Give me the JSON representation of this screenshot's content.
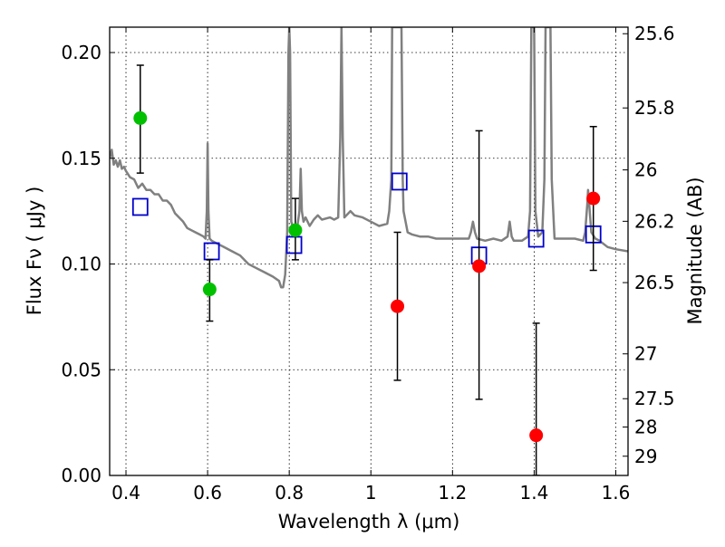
{
  "chart_data": {
    "type": "scatter",
    "xlabel": "Wavelength  λ (μm)",
    "ylabel": "Flux  Fν  ( μJy )",
    "y2label": "Magnitude (AB)",
    "xlim": [
      0.36,
      1.63
    ],
    "ylim": [
      0.0,
      0.212
    ],
    "x_ticks": [
      0.4,
      0.6,
      0.8,
      1.0,
      1.2,
      1.4,
      1.6
    ],
    "x_tick_labels": [
      "0.4",
      "0.6",
      "0.8",
      "1",
      "1.2",
      "1.4",
      "1.6"
    ],
    "y_ticks": [
      0.0,
      0.05,
      0.1,
      0.15,
      0.2
    ],
    "y_tick_labels": [
      "0.00",
      "0.05",
      "0.10",
      "0.15",
      "0.20"
    ],
    "mag_ticks": [
      {
        "label": "25.6",
        "flux": 0.2089
      },
      {
        "label": "25.8",
        "flux": 0.1738
      },
      {
        "label": "26",
        "flux": 0.1445
      },
      {
        "label": "26.2",
        "flux": 0.1202
      },
      {
        "label": "26.5",
        "flux": 0.0912
      },
      {
        "label": "27",
        "flux": 0.0575
      },
      {
        "label": "27.5",
        "flux": 0.0363
      },
      {
        "label": "28",
        "flux": 0.0229
      },
      {
        "label": "29",
        "flux": 0.0091
      }
    ],
    "grid": true,
    "colors": {
      "model": "#808080",
      "green_points": "#00c000",
      "red_points": "#ff0000",
      "squares": "#0000cc",
      "errorbars": "#000000"
    },
    "series": [
      {
        "marker": "line",
        "points": [
          [
            0.36,
            0.15
          ],
          [
            0.365,
            0.154
          ],
          [
            0.37,
            0.147
          ],
          [
            0.375,
            0.149
          ],
          [
            0.38,
            0.146
          ],
          [
            0.385,
            0.149
          ],
          [
            0.39,
            0.145
          ],
          [
            0.395,
            0.146
          ],
          [
            0.4,
            0.144
          ],
          [
            0.41,
            0.141
          ],
          [
            0.42,
            0.14
          ],
          [
            0.43,
            0.136
          ],
          [
            0.44,
            0.138
          ],
          [
            0.45,
            0.135
          ],
          [
            0.46,
            0.135
          ],
          [
            0.47,
            0.133
          ],
          [
            0.48,
            0.133
          ],
          [
            0.49,
            0.13
          ],
          [
            0.5,
            0.13
          ],
          [
            0.51,
            0.128
          ],
          [
            0.52,
            0.124
          ],
          [
            0.53,
            0.122
          ],
          [
            0.54,
            0.12
          ],
          [
            0.55,
            0.117
          ],
          [
            0.56,
            0.116
          ],
          [
            0.57,
            0.115
          ],
          [
            0.58,
            0.114
          ],
          [
            0.59,
            0.113
          ],
          [
            0.595,
            0.112
          ],
          [
            0.598,
            0.125
          ],
          [
            0.6,
            0.157
          ],
          [
            0.602,
            0.125
          ],
          [
            0.605,
            0.112
          ],
          [
            0.61,
            0.111
          ],
          [
            0.62,
            0.11
          ],
          [
            0.64,
            0.108
          ],
          [
            0.66,
            0.106
          ],
          [
            0.68,
            0.104
          ],
          [
            0.7,
            0.1
          ],
          [
            0.72,
            0.098
          ],
          [
            0.74,
            0.096
          ],
          [
            0.76,
            0.094
          ],
          [
            0.775,
            0.092
          ],
          [
            0.78,
            0.089
          ],
          [
            0.785,
            0.089
          ],
          [
            0.79,
            0.095
          ],
          [
            0.795,
            0.115
          ],
          [
            0.798,
            0.2
          ],
          [
            0.8,
            0.212
          ],
          [
            0.802,
            0.2
          ],
          [
            0.805,
            0.12
          ],
          [
            0.81,
            0.117
          ],
          [
            0.815,
            0.118
          ],
          [
            0.82,
            0.118
          ],
          [
            0.825,
            0.125
          ],
          [
            0.828,
            0.145
          ],
          [
            0.831,
            0.125
          ],
          [
            0.835,
            0.12
          ],
          [
            0.84,
            0.122
          ],
          [
            0.85,
            0.118
          ],
          [
            0.86,
            0.121
          ],
          [
            0.87,
            0.123
          ],
          [
            0.88,
            0.121
          ],
          [
            0.9,
            0.122
          ],
          [
            0.91,
            0.121
          ],
          [
            0.92,
            0.122
          ],
          [
            0.925,
            0.16
          ],
          [
            0.928,
            0.212
          ],
          [
            0.931,
            0.16
          ],
          [
            0.935,
            0.122
          ],
          [
            0.95,
            0.125
          ],
          [
            0.96,
            0.123
          ],
          [
            0.98,
            0.122
          ],
          [
            1.0,
            0.12
          ],
          [
            1.02,
            0.118
          ],
          [
            1.04,
            0.119
          ],
          [
            1.045,
            0.125
          ],
          [
            1.05,
            0.14
          ],
          [
            1.052,
            0.212
          ],
          [
            1.075,
            0.212
          ],
          [
            1.078,
            0.14
          ],
          [
            1.08,
            0.125
          ],
          [
            1.09,
            0.115
          ],
          [
            1.1,
            0.114
          ],
          [
            1.12,
            0.113
          ],
          [
            1.14,
            0.113
          ],
          [
            1.16,
            0.112
          ],
          [
            1.18,
            0.112
          ],
          [
            1.2,
            0.112
          ],
          [
            1.22,
            0.112
          ],
          [
            1.24,
            0.112
          ],
          [
            1.245,
            0.115
          ],
          [
            1.25,
            0.12
          ],
          [
            1.255,
            0.115
          ],
          [
            1.26,
            0.112
          ],
          [
            1.28,
            0.111
          ],
          [
            1.3,
            0.112
          ],
          [
            1.32,
            0.111
          ],
          [
            1.335,
            0.113
          ],
          [
            1.34,
            0.12
          ],
          [
            1.345,
            0.113
          ],
          [
            1.35,
            0.111
          ],
          [
            1.37,
            0.111
          ],
          [
            1.385,
            0.113
          ],
          [
            1.39,
            0.125
          ],
          [
            1.393,
            0.212
          ],
          [
            1.4,
            0.212
          ],
          [
            1.403,
            0.125
          ],
          [
            1.41,
            0.113
          ],
          [
            1.42,
            0.115
          ],
          [
            1.425,
            0.14
          ],
          [
            1.428,
            0.212
          ],
          [
            1.44,
            0.212
          ],
          [
            1.443,
            0.14
          ],
          [
            1.45,
            0.112
          ],
          [
            1.46,
            0.112
          ],
          [
            1.48,
            0.112
          ],
          [
            1.5,
            0.112
          ],
          [
            1.52,
            0.111
          ],
          [
            1.525,
            0.115
          ],
          [
            1.53,
            0.128
          ],
          [
            1.532,
            0.135
          ],
          [
            1.535,
            0.128
          ],
          [
            1.54,
            0.115
          ],
          [
            1.55,
            0.112
          ],
          [
            1.56,
            0.111
          ],
          [
            1.58,
            0.108
          ],
          [
            1.6,
            0.107
          ],
          [
            1.63,
            0.106
          ]
        ]
      },
      {
        "marker": "circle",
        "points": [
          {
            "x": 0.435,
            "y": 0.169,
            "ylo": 0.143,
            "yhi": 0.194
          },
          {
            "x": 0.605,
            "y": 0.088,
            "ylo": 0.073,
            "yhi": 0.102
          },
          {
            "x": 0.815,
            "y": 0.116,
            "ylo": 0.102,
            "yhi": 0.131
          }
        ]
      },
      {
        "marker": "circle",
        "points": [
          {
            "x": 1.065,
            "y": 0.08,
            "ylo": 0.045,
            "yhi": 0.115
          },
          {
            "x": 1.265,
            "y": 0.099,
            "ylo": 0.036,
            "yhi": 0.163
          },
          {
            "x": 1.405,
            "y": 0.019,
            "ylo": 0.0,
            "yhi": 0.072
          },
          {
            "x": 1.545,
            "y": 0.131,
            "ylo": 0.097,
            "yhi": 0.165
          }
        ]
      },
      {
        "marker": "square",
        "points": [
          {
            "x": 0.435,
            "y": 0.127
          },
          {
            "x": 0.61,
            "y": 0.106
          },
          {
            "x": 0.812,
            "y": 0.109
          },
          {
            "x": 1.07,
            "y": 0.139
          },
          {
            "x": 1.265,
            "y": 0.104
          },
          {
            "x": 1.405,
            "y": 0.112
          },
          {
            "x": 1.545,
            "y": 0.114
          }
        ]
      }
    ]
  }
}
